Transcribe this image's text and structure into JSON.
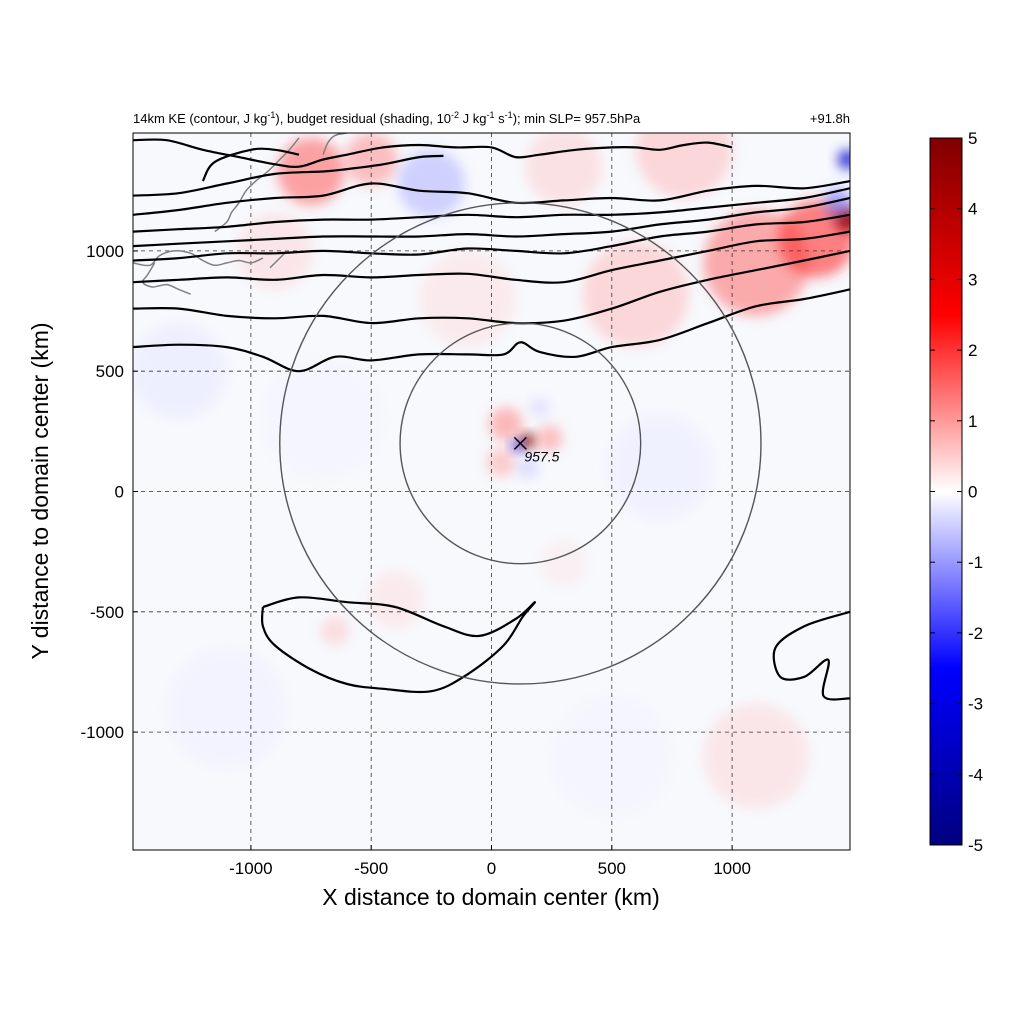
{
  "chart_data": {
    "type": "heatmap",
    "title_parts": {
      "a": "14km KE (contour, J kg",
      "a_sup": "-1",
      "b": "), budget residual (shading, 10",
      "b_sup": "-2",
      "c": " J kg",
      "c_sup": "-1",
      "d": " s",
      "d_sup": "-1",
      "e": "); min SLP= 957.5hPa"
    },
    "time_label": "+91.8h",
    "xlabel": "X distance to domain center (km)",
    "ylabel": "Y distance to domain center (km)",
    "xlim": [
      -1490,
      1490
    ],
    "ylim": [
      -1490,
      1490
    ],
    "xticks": [
      -1000,
      -500,
      0,
      500,
      1000
    ],
    "yticks": [
      -1000,
      -500,
      0,
      500,
      1000
    ],
    "xtick_labels": [
      "-1000",
      "-500",
      "0",
      "500",
      "1000"
    ],
    "ytick_labels": [
      "-1000",
      "-500",
      "0",
      "500",
      "1000"
    ],
    "grid": true,
    "colorbar": {
      "range": [
        -5,
        5
      ],
      "ticks": [
        -5,
        -4,
        -3,
        -2,
        -1,
        0,
        1,
        2,
        3,
        4,
        5
      ],
      "tick_labels": [
        "-5",
        "-4",
        "-3",
        "-2",
        "-1",
        "0",
        "1",
        "2",
        "3",
        "4",
        "5"
      ],
      "colors": [
        "#00007f",
        "#0000ff",
        "#ffffff",
        "#ff0000",
        "#7f0000"
      ]
    },
    "storm_center": {
      "x": 120,
      "y": 200,
      "label": "957.5"
    },
    "radius_circles_km": [
      500,
      1000
    ],
    "contour_color": "#000000",
    "circle_color": "#555555",
    "coast_color": "#808080",
    "ke_contours": [
      [
        [
          -1490,
          600
        ],
        [
          -1300,
          610
        ],
        [
          -1100,
          600
        ],
        [
          -950,
          560
        ],
        [
          -800,
          500
        ],
        [
          -650,
          560
        ],
        [
          -500,
          545
        ],
        [
          -300,
          570
        ],
        [
          -100,
          570
        ],
        [
          50,
          570
        ],
        [
          120,
          620
        ],
        [
          200,
          580
        ],
        [
          350,
          560
        ],
        [
          500,
          600
        ],
        [
          700,
          630
        ],
        [
          900,
          700
        ],
        [
          1100,
          770
        ],
        [
          1300,
          800
        ],
        [
          1490,
          840
        ]
      ],
      [
        [
          -1490,
          760
        ],
        [
          -1300,
          760
        ],
        [
          -1100,
          730
        ],
        [
          -900,
          720
        ],
        [
          -700,
          730
        ],
        [
          -500,
          700
        ],
        [
          -300,
          720
        ],
        [
          -100,
          720
        ],
        [
          100,
          700
        ],
        [
          300,
          710
        ],
        [
          500,
          760
        ],
        [
          700,
          830
        ],
        [
          900,
          880
        ],
        [
          1100,
          920
        ],
        [
          1300,
          960
        ],
        [
          1490,
          1000
        ]
      ],
      [
        [
          -1490,
          870
        ],
        [
          -1300,
          880
        ],
        [
          -1100,
          890
        ],
        [
          -900,
          880
        ],
        [
          -700,
          900
        ],
        [
          -500,
          890
        ],
        [
          -300,
          900
        ],
        [
          -100,
          905
        ],
        [
          100,
          880
        ],
        [
          300,
          870
        ],
        [
          500,
          920
        ],
        [
          700,
          960
        ],
        [
          900,
          1000
        ],
        [
          1100,
          1040
        ],
        [
          1300,
          1050
        ],
        [
          1490,
          1080
        ]
      ],
      [
        [
          -1490,
          960
        ],
        [
          -1300,
          970
        ],
        [
          -1100,
          990
        ],
        [
          -900,
          990
        ],
        [
          -700,
          1000
        ],
        [
          -500,
          990
        ],
        [
          -300,
          985
        ],
        [
          -100,
          1010
        ],
        [
          100,
          1000
        ],
        [
          300,
          990
        ],
        [
          500,
          1020
        ],
        [
          700,
          1060
        ],
        [
          900,
          1080
        ],
        [
          1100,
          1110
        ],
        [
          1300,
          1120
        ],
        [
          1490,
          1150
        ]
      ],
      [
        [
          -1490,
          1020
        ],
        [
          -1300,
          1030
        ],
        [
          -1100,
          1040
        ],
        [
          -900,
          1050
        ],
        [
          -700,
          1060
        ],
        [
          -500,
          1060
        ],
        [
          -300,
          1060
        ],
        [
          -100,
          1070
        ],
        [
          100,
          1060
        ],
        [
          300,
          1070
        ],
        [
          500,
          1080
        ],
        [
          700,
          1110
        ],
        [
          900,
          1130
        ],
        [
          1100,
          1160
        ],
        [
          1300,
          1180
        ],
        [
          1490,
          1220
        ]
      ],
      [
        [
          -1490,
          1080
        ],
        [
          -1300,
          1090
        ],
        [
          -1100,
          1100
        ],
        [
          -900,
          1120
        ],
        [
          -700,
          1130
        ],
        [
          -500,
          1130
        ],
        [
          -300,
          1140
        ],
        [
          -100,
          1150
        ],
        [
          100,
          1140
        ],
        [
          300,
          1150
        ],
        [
          500,
          1150
        ],
        [
          700,
          1160
        ],
        [
          900,
          1180
        ],
        [
          1100,
          1200
        ],
        [
          1300,
          1220
        ],
        [
          1490,
          1260
        ]
      ],
      [
        [
          -1490,
          1150
        ],
        [
          -1300,
          1170
        ],
        [
          -1100,
          1200
        ],
        [
          -900,
          1220
        ],
        [
          -700,
          1230
        ],
        [
          -500,
          1280
        ],
        [
          -300,
          1250
        ],
        [
          -100,
          1240
        ],
        [
          100,
          1200
        ],
        [
          300,
          1210
        ],
        [
          500,
          1220
        ],
        [
          700,
          1210
        ],
        [
          900,
          1250
        ],
        [
          1100,
          1270
        ],
        [
          1300,
          1260
        ],
        [
          1490,
          1290
        ]
      ],
      [
        [
          -1490,
          1230
        ],
        [
          -1300,
          1240
        ],
        [
          -1100,
          1280
        ],
        [
          -900,
          1320
        ],
        [
          -700,
          1330
        ],
        [
          -600,
          1340
        ],
        [
          -450,
          1360
        ],
        [
          -300,
          1390
        ],
        [
          -200,
          1395
        ]
      ],
      [
        [
          -1490,
          1460
        ],
        [
          -1350,
          1460
        ],
        [
          -1200,
          1420
        ],
        [
          -1050,
          1390
        ],
        [
          -900,
          1360
        ],
        [
          -800,
          1350
        ],
        [
          -700,
          1380
        ],
        [
          -600,
          1400
        ],
        [
          -450,
          1430
        ],
        [
          -300,
          1440
        ],
        [
          -150,
          1430
        ],
        [
          0,
          1430
        ],
        [
          100,
          1390
        ],
        [
          200,
          1400
        ],
        [
          350,
          1420
        ],
        [
          500,
          1430
        ],
        [
          600,
          1430
        ],
        [
          700,
          1420
        ],
        [
          800,
          1440
        ],
        [
          900,
          1450
        ],
        [
          1000,
          1430
        ]
      ],
      [
        [
          -1200,
          1290
        ],
        [
          -1150,
          1370
        ],
        [
          -1000,
          1420
        ],
        [
          -900,
          1420
        ],
        [
          -800,
          1400
        ]
      ]
    ],
    "ke_closed_contours": [
      [
        [
          -950,
          -480
        ],
        [
          -800,
          -440
        ],
        [
          -600,
          -460
        ],
        [
          -400,
          -480
        ],
        [
          -200,
          -560
        ],
        [
          -50,
          -600
        ],
        [
          100,
          -530
        ],
        [
          180,
          -460
        ],
        [
          130,
          -520
        ],
        [
          50,
          -640
        ],
        [
          -100,
          -760
        ],
        [
          -250,
          -830
        ],
        [
          -450,
          -820
        ],
        [
          -600,
          -800
        ],
        [
          -750,
          -740
        ],
        [
          -900,
          -640
        ],
        [
          -950,
          -560
        ],
        [
          -950,
          -480
        ]
      ],
      [
        [
          1490,
          -500
        ],
        [
          1300,
          -560
        ],
        [
          1180,
          -650
        ],
        [
          1200,
          -770
        ],
        [
          1300,
          -770
        ],
        [
          1400,
          -700
        ],
        [
          1380,
          -850
        ],
        [
          1490,
          -860
        ]
      ]
    ],
    "coastline": [
      [
        [
          -1490,
          950
        ],
        [
          -1420,
          940
        ],
        [
          -1380,
          980
        ],
        [
          -1320,
          1000
        ],
        [
          -1250,
          990
        ],
        [
          -1200,
          960
        ],
        [
          -1150,
          940
        ],
        [
          -1100,
          950
        ],
        [
          -1050,
          960
        ],
        [
          -1000,
          950
        ],
        [
          -950,
          970
        ]
      ],
      [
        [
          -1400,
          950
        ],
        [
          -1430,
          900
        ],
        [
          -1450,
          870
        ],
        [
          -1410,
          850
        ],
        [
          -1350,
          860
        ],
        [
          -1300,
          840
        ],
        [
          -1250,
          820
        ]
      ],
      [
        [
          -1150,
          1080
        ],
        [
          -1100,
          1120
        ],
        [
          -1080,
          1160
        ],
        [
          -1050,
          1200
        ],
        [
          -1020,
          1250
        ],
        [
          -980,
          1290
        ],
        [
          -930,
          1330
        ],
        [
          -880,
          1380
        ],
        [
          -840,
          1420
        ],
        [
          -800,
          1470
        ]
      ],
      [
        [
          -700,
          1400
        ],
        [
          -680,
          1450
        ],
        [
          -650,
          1480
        ],
        [
          -600,
          1490
        ]
      ],
      [
        [
          -920,
          930
        ],
        [
          -880,
          970
        ],
        [
          -850,
          1000
        ]
      ]
    ],
    "heat_spots": [
      {
        "x": 150,
        "y": 210,
        "r": 30,
        "v": 5
      },
      {
        "x": 105,
        "y": 190,
        "r": 25,
        "v": -3
      },
      {
        "x": 60,
        "y": 280,
        "r": 70,
        "v": 1.3
      },
      {
        "x": 40,
        "y": 120,
        "r": 60,
        "v": 1.0
      },
      {
        "x": 240,
        "y": 220,
        "r": 55,
        "v": 1.2
      },
      {
        "x": 150,
        "y": 100,
        "r": 45,
        "v": -0.7
      },
      {
        "x": 200,
        "y": 350,
        "r": 40,
        "v": -0.6
      },
      {
        "x": -750,
        "y": 1330,
        "r": 140,
        "v": 1.6
      },
      {
        "x": -500,
        "y": 1380,
        "r": 110,
        "v": 1.2
      },
      {
        "x": -250,
        "y": 1280,
        "r": 140,
        "v": -0.9
      },
      {
        "x": 1100,
        "y": 950,
        "r": 220,
        "v": 1.5
      },
      {
        "x": 1350,
        "y": 1050,
        "r": 160,
        "v": 2.0
      },
      {
        "x": 1480,
        "y": 1130,
        "r": 50,
        "v": 4.5
      },
      {
        "x": 1480,
        "y": 1380,
        "r": 40,
        "v": -3.5
      },
      {
        "x": 1440,
        "y": 1200,
        "r": 60,
        "v": -1.5
      },
      {
        "x": 800,
        "y": 1420,
        "r": 200,
        "v": 0.8
      },
      {
        "x": 300,
        "y": 1350,
        "r": 160,
        "v": 0.6
      },
      {
        "x": 600,
        "y": 820,
        "r": 220,
        "v": 0.8
      },
      {
        "x": -100,
        "y": 800,
        "r": 200,
        "v": 0.4
      },
      {
        "x": -900,
        "y": 1000,
        "r": 160,
        "v": 0.5
      },
      {
        "x": 1100,
        "y": -1100,
        "r": 220,
        "v": 0.5
      },
      {
        "x": -400,
        "y": -450,
        "r": 120,
        "v": 0.4
      },
      {
        "x": -650,
        "y": -580,
        "r": 60,
        "v": 0.7
      },
      {
        "x": 300,
        "y": -300,
        "r": 100,
        "v": 0.3
      },
      {
        "x": -1300,
        "y": 500,
        "r": 200,
        "v": -0.3
      },
      {
        "x": -1100,
        "y": -900,
        "r": 250,
        "v": -0.2
      },
      {
        "x": -700,
        "y": 300,
        "r": 250,
        "v": -0.15
      },
      {
        "x": 700,
        "y": 100,
        "r": 220,
        "v": -0.25
      },
      {
        "x": 500,
        "y": -1100,
        "r": 250,
        "v": -0.15
      }
    ]
  }
}
